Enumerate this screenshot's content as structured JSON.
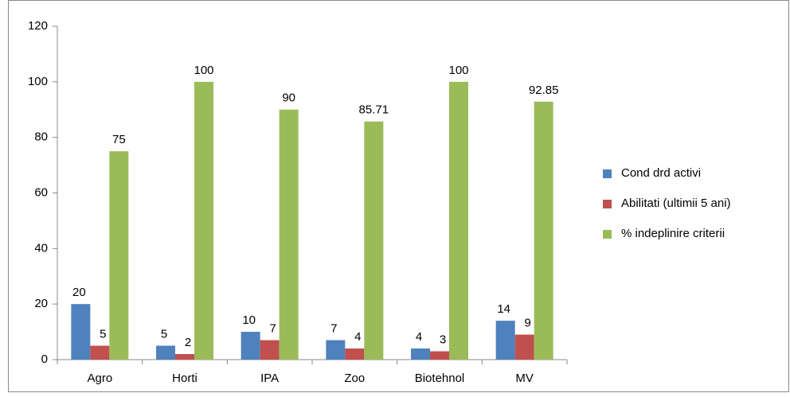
{
  "chart_data": {
    "type": "bar",
    "categories": [
      "Agro",
      "Horti",
      "IPA",
      "Zoo",
      "Biotehnol",
      "MV"
    ],
    "series": [
      {
        "name": "Cond drd activi",
        "color": "#4f81bd",
        "values": [
          20,
          5,
          10,
          7,
          4,
          14
        ]
      },
      {
        "name": "Abilitati (ultimii 5 ani)",
        "color": "#c0504d",
        "values": [
          5,
          2,
          7,
          4,
          3,
          9
        ]
      },
      {
        "name": "% indeplinire criterii",
        "color": "#9bbb59",
        "values": [
          75,
          100,
          90,
          85.71,
          100,
          92.85
        ]
      }
    ],
    "ylim": [
      0,
      120
    ],
    "yticks": [
      0,
      20,
      40,
      60,
      80,
      100,
      120
    ],
    "grid": false,
    "legend": "right"
  }
}
